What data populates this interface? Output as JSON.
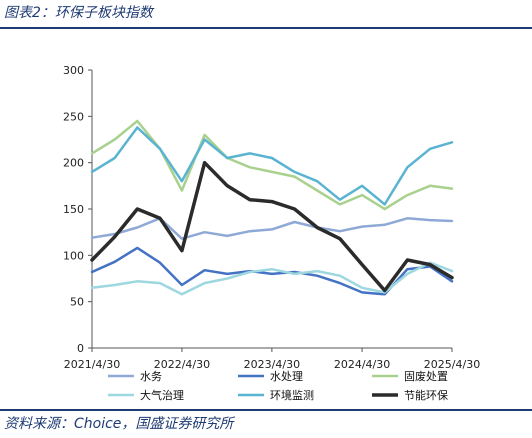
{
  "header": {
    "title": "图表2：环保子板块指数"
  },
  "footer": {
    "source": "资料来源：Choice，国盛证券研究所"
  },
  "chart_data": {
    "type": "line",
    "title": "环保子板块指数",
    "xlabel": "",
    "ylabel": "",
    "ylim": [
      0,
      300
    ],
    "yticks": [
      0,
      50,
      100,
      150,
      200,
      250,
      300
    ],
    "xrange": [
      "2021/4/30",
      "2025/4/30"
    ],
    "xticks": [
      "2021/4/30",
      "2022/4/30",
      "2023/4/30",
      "2024/4/30",
      "2025/4/30"
    ],
    "grid": false,
    "legend_position": "bottom",
    "x": [
      "2021/4/30",
      "2021/7/31",
      "2021/10/31",
      "2022/1/31",
      "2022/4/30",
      "2022/7/31",
      "2022/10/31",
      "2023/1/31",
      "2023/4/30",
      "2023/7/31",
      "2023/10/31",
      "2024/1/31",
      "2024/4/30",
      "2024/7/31",
      "2024/10/31",
      "2025/1/31",
      "2025/4/30"
    ],
    "series": [
      {
        "name": "水务",
        "color": "#8fa9d6",
        "width": 2.5,
        "values": [
          119,
          123,
          130,
          140,
          118,
          125,
          121,
          126,
          128,
          136,
          130,
          126,
          131,
          133,
          140,
          138,
          137
        ]
      },
      {
        "name": "水处理",
        "color": "#4472c4",
        "width": 2.5,
        "values": [
          82,
          93,
          108,
          92,
          68,
          84,
          80,
          83,
          80,
          82,
          78,
          70,
          60,
          58,
          85,
          88,
          72
        ]
      },
      {
        "name": "固废处置",
        "color": "#a9d18e",
        "width": 2.5,
        "values": [
          210,
          225,
          245,
          215,
          170,
          230,
          205,
          195,
          190,
          185,
          170,
          155,
          165,
          150,
          165,
          175,
          172
        ]
      },
      {
        "name": "大气治理",
        "color": "#9dd7e0",
        "width": 2.5,
        "values": [
          65,
          68,
          72,
          70,
          58,
          70,
          75,
          82,
          85,
          80,
          83,
          78,
          65,
          60,
          80,
          92,
          83
        ]
      },
      {
        "name": "环境监测",
        "color": "#5ab4d1",
        "width": 2.5,
        "values": [
          190,
          205,
          238,
          215,
          180,
          225,
          205,
          210,
          205,
          190,
          180,
          160,
          175,
          155,
          195,
          215,
          222
        ]
      },
      {
        "name": "节能环保",
        "color": "#2b2b2b",
        "width": 3.5,
        "values": [
          95,
          120,
          150,
          140,
          105,
          200,
          175,
          160,
          158,
          150,
          130,
          118,
          90,
          62,
          95,
          90,
          76
        ]
      }
    ]
  }
}
